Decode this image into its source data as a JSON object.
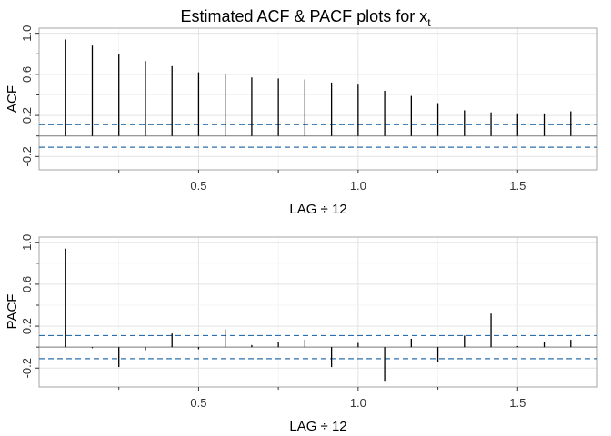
{
  "chart_data": [
    {
      "type": "bar",
      "name": "acf",
      "title_main": "Estimated ACF & PACF plots for x",
      "title_subscript": "t",
      "xlabel": "LAG ÷ 12",
      "ylabel": "ACF",
      "xlim": [
        0.0,
        1.75
      ],
      "ylim": [
        -0.33,
        1.05
      ],
      "x_ticks": [
        0.5,
        1.0,
        1.5
      ],
      "x_tick_labels": [
        "0.5",
        "1.0",
        "1.5"
      ],
      "y_ticks": [
        -0.2,
        0.2,
        0.6,
        1.0
      ],
      "y_tick_labels": [
        "-0.2",
        "0.2",
        "0.6",
        "1.0"
      ],
      "confidence_bound": 0.11,
      "x": [
        0.0833,
        0.1667,
        0.25,
        0.3333,
        0.4167,
        0.5,
        0.5833,
        0.6667,
        0.75,
        0.8333,
        0.9167,
        1.0,
        1.0833,
        1.1667,
        1.25,
        1.3333,
        1.4167,
        1.5,
        1.5833,
        1.6667
      ],
      "values": [
        0.94,
        0.88,
        0.8,
        0.73,
        0.68,
        0.62,
        0.6,
        0.57,
        0.56,
        0.55,
        0.52,
        0.5,
        0.44,
        0.39,
        0.32,
        0.25,
        0.23,
        0.22,
        0.22,
        0.24
      ]
    },
    {
      "type": "bar",
      "name": "pacf",
      "xlabel": "LAG ÷ 12",
      "ylabel": "PACF",
      "xlim": [
        0.0,
        1.75
      ],
      "ylim": [
        -0.38,
        1.05
      ],
      "x_ticks": [
        0.5,
        1.0,
        1.5
      ],
      "x_tick_labels": [
        "0.5",
        "1.0",
        "1.5"
      ],
      "y_ticks": [
        -0.2,
        0.2,
        0.6,
        1.0
      ],
      "y_tick_labels": [
        "-0.2",
        "0.2",
        "0.6",
        "1.0"
      ],
      "confidence_bound": 0.11,
      "x": [
        0.0833,
        0.1667,
        0.25,
        0.3333,
        0.4167,
        0.5,
        0.5833,
        0.6667,
        0.75,
        0.8333,
        0.9167,
        1.0,
        1.0833,
        1.1667,
        1.25,
        1.3333,
        1.4167,
        1.5,
        1.5833,
        1.6667
      ],
      "values": [
        0.94,
        -0.01,
        -0.19,
        -0.03,
        0.13,
        -0.02,
        0.17,
        0.02,
        0.05,
        0.07,
        -0.19,
        0.04,
        -0.33,
        0.08,
        -0.14,
        0.11,
        0.32,
        0.01,
        0.05,
        0.07
      ]
    }
  ],
  "colors": {
    "bars": "#000000",
    "confidence": "#2b6fad",
    "grid": "#e3e3e3",
    "frame": "#a6a6a6"
  }
}
